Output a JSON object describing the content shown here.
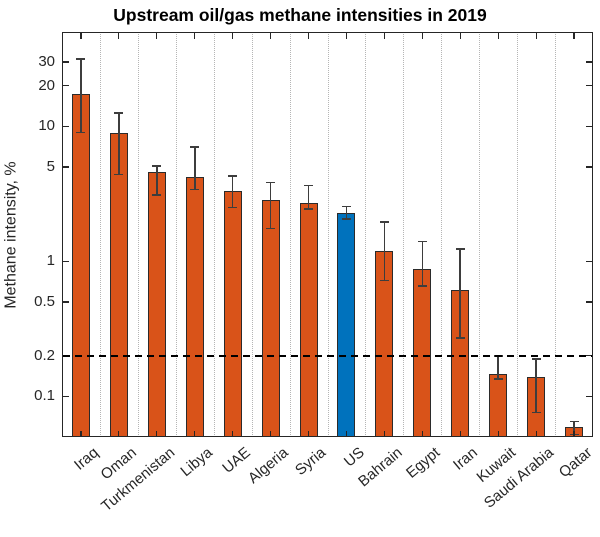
{
  "chart_data": {
    "type": "bar",
    "title": "Upstream oil/gas methane intensities in 2019",
    "xlabel": "",
    "ylabel": "Methane intensity, %",
    "yscale": "log",
    "ylim": [
      0.05,
      50
    ],
    "grid": "vertical dotted gridlines between categories, no horizontal grid",
    "legend": null,
    "categories": [
      "Iraq",
      "Oman",
      "Turkmenistan",
      "Libya",
      "UAE",
      "Algeria",
      "Syria",
      "US",
      "Bahrain",
      "Egypt",
      "Iran",
      "Kuwait",
      "Saudi Arabia",
      "Qatar"
    ],
    "values": [
      17.5,
      8.9,
      4.6,
      4.2,
      3.3,
      2.85,
      2.7,
      2.3,
      1.2,
      0.88,
      0.61,
      0.147,
      0.14,
      0.059
    ],
    "error_low": [
      9.0,
      4.4,
      3.1,
      3.4,
      2.5,
      1.75,
      2.45,
      2.05,
      0.72,
      0.66,
      0.27,
      0.135,
      0.076,
      0.052
    ],
    "error_high": [
      31.5,
      12.5,
      5.1,
      7.0,
      4.3,
      3.85,
      3.65,
      2.55,
      1.95,
      1.4,
      1.24,
      0.2,
      0.19,
      0.065
    ],
    "highlight_category": "US",
    "threshold_line": {
      "value": 0.2,
      "style": "dashed",
      "color": "#000000"
    },
    "yticks": {
      "values": [
        30,
        20,
        10,
        5,
        1,
        0.5,
        0.2,
        0.1
      ],
      "labels": [
        "30",
        "20",
        "10",
        "5",
        "1",
        "0.5",
        "0.2",
        "0.1"
      ]
    }
  },
  "colors": {
    "bar_default": "#D95319",
    "bar_highlight": "#0072BD",
    "bar_edge": "#2b2b2b",
    "error_bar": "#3d3d3d",
    "grid": "#b5b5b5",
    "axis": "#262626",
    "background": "#ffffff",
    "title_text": "#000000",
    "tick_text": "#262626"
  }
}
